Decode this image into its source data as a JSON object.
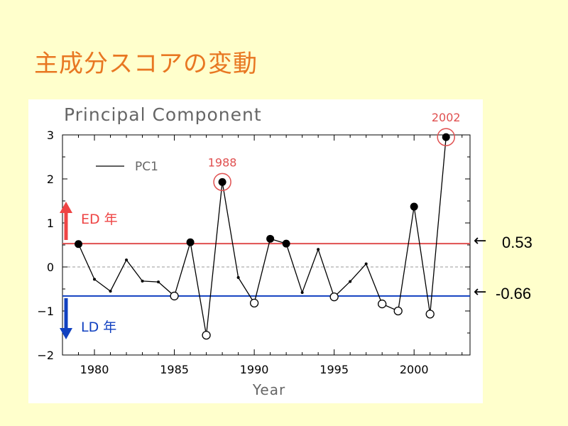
{
  "slide": {
    "title": "主成分スコアの変動"
  },
  "colors": {
    "upper_line": "#e05050",
    "lower_line": "#1040c0",
    "highlight": "#e05050",
    "ed_arrow": "#ee4444",
    "ld_arrow": "#1040c0",
    "series": "#000000"
  },
  "side_labels": {
    "upper": "0.53",
    "lower": "-0.66"
  },
  "chart_data": {
    "type": "line",
    "title": "Principal Component",
    "xlabel": "Year",
    "ylabel": "",
    "xlim": [
      1978,
      2003.5
    ],
    "ylim": [
      -2,
      3
    ],
    "x_ticks": [
      1980,
      1985,
      1990,
      1995,
      2000
    ],
    "y_ticks": [
      -2,
      -1,
      0,
      1,
      2,
      3
    ],
    "grid": "dashed-zero-line",
    "legend": {
      "position": "top-left",
      "entries": [
        "PC1"
      ]
    },
    "series": [
      {
        "name": "PC1",
        "x": [
          1979,
          1980,
          1981,
          1982,
          1983,
          1984,
          1985,
          1986,
          1987,
          1988,
          1989,
          1990,
          1991,
          1992,
          1993,
          1994,
          1995,
          1996,
          1997,
          1998,
          1999,
          2000,
          2001,
          2002
        ],
        "y": [
          0.52,
          -0.28,
          -0.55,
          0.16,
          -0.32,
          -0.34,
          -0.66,
          0.56,
          -1.55,
          1.93,
          -0.24,
          -0.82,
          0.64,
          0.53,
          -0.58,
          0.4,
          -0.68,
          -0.33,
          0.07,
          -0.84,
          -1.0,
          1.37,
          -1.07,
          2.95
        ],
        "marker": [
          "filled",
          "dot",
          "dot",
          "dot",
          "dot",
          "dot",
          "open",
          "filled",
          "open",
          "filled",
          "dot",
          "open",
          "filled",
          "filled",
          "dot",
          "dot",
          "open",
          "dot",
          "dot",
          "open",
          "open",
          "filled",
          "open",
          "filled"
        ]
      }
    ],
    "thresholds": [
      {
        "value": 0.53,
        "label": "ED 年",
        "direction": "up"
      },
      {
        "value": -0.66,
        "label": "LD 年",
        "direction": "down"
      }
    ],
    "annotations": [
      {
        "x": 1988,
        "y": 1.93,
        "text": "1988"
      },
      {
        "x": 2002,
        "y": 2.95,
        "text": "2002"
      }
    ]
  }
}
